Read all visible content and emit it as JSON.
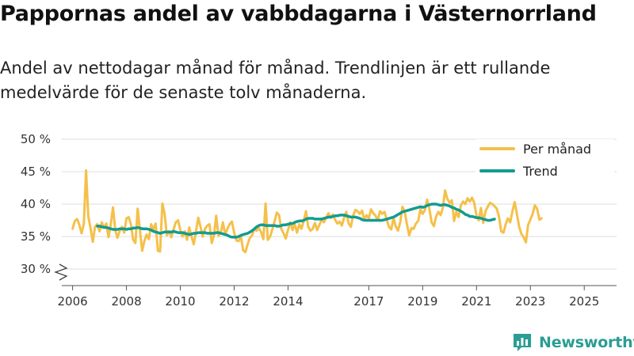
{
  "title": "Pappornas andel av vabbdagarna i Västernorrland",
  "subtitle": "Andel av nettodagar månad för månad. Trendlinjen är ett rullande medelvärde för de senaste tolv månaderna.",
  "brand": "Newsworthy",
  "colors": {
    "monthly": "#f5c04a",
    "trend": "#139b8f",
    "grid": "#dddddd",
    "axis": "#555555",
    "brand": "#2a9d94"
  },
  "chart_data": {
    "type": "line",
    "title": "Pappornas andel av vabbdagarna i Västernorrland",
    "xlabel": "",
    "ylabel": "",
    "ylim": [
      30,
      50
    ],
    "y_axis_break": true,
    "xlim": [
      2005.6,
      2026.2
    ],
    "x_ticks": [
      2006,
      2008,
      2010,
      2012,
      2014,
      2017,
      2019,
      2021,
      2023,
      2025
    ],
    "y_ticks": [
      30,
      35,
      40,
      45,
      50
    ],
    "y_tick_labels": [
      "30 %",
      "35 %",
      "40 %",
      "45 %",
      "50 %"
    ],
    "legend_position": "top-right",
    "grid": true,
    "series": [
      {
        "name": "Per månad",
        "start": 2006.0,
        "step": 0.08333,
        "values": [
          36.2,
          37.4,
          37.7,
          36.8,
          35.5,
          37.0,
          45.2,
          38.1,
          36.3,
          34.2,
          36.5,
          36.9,
          35.8,
          37.2,
          36.4,
          37.0,
          34.9,
          36.8,
          39.5,
          36.0,
          34.8,
          35.9,
          36.5,
          35.6,
          37.8,
          38.0,
          36.9,
          34.5,
          34.0,
          39.3,
          36.0,
          32.8,
          34.3,
          35.3,
          34.6,
          36.9,
          36.1,
          37.0,
          32.8,
          32.7,
          40.1,
          38.5,
          35.2,
          35.8,
          34.9,
          36.1,
          37.2,
          37.5,
          36.0,
          35.0,
          35.8,
          34.5,
          36.4,
          35.0,
          33.8,
          35.8,
          37.9,
          36.5,
          35.0,
          36.2,
          36.7,
          36.9,
          34.0,
          35.2,
          38.2,
          35.1,
          35.6,
          37.2,
          35.3,
          36.2,
          36.9,
          37.3,
          35.6,
          34.4,
          34.3,
          35.0,
          32.9,
          32.6,
          33.8,
          34.8,
          35.2,
          36.2,
          35.9,
          36.3,
          35.7,
          34.6,
          40.1,
          34.5,
          35.0,
          36.1,
          37.3,
          38.7,
          38.3,
          36.2,
          35.5,
          34.7,
          36.0,
          37.2,
          36.0,
          36.9,
          35.6,
          36.9,
          36.2,
          37.4,
          38.9,
          36.5,
          35.9,
          36.2,
          37.1,
          36.0,
          36.8,
          37.6,
          37.2,
          37.9,
          38.6,
          37.9,
          38.4,
          37.6,
          37.0,
          37.3,
          36.7,
          37.9,
          38.8,
          37.0,
          36.5,
          38.2,
          39.1,
          38.9,
          38.5,
          39.0,
          37.6,
          38.3,
          37.8,
          39.2,
          38.6,
          38.2,
          37.5,
          38.9,
          38.5,
          38.8,
          37.6,
          36.5,
          36.1,
          37.9,
          36.6,
          35.9,
          37.2,
          39.6,
          38.8,
          36.9,
          35.2,
          36.3,
          36.2,
          37.0,
          37.4,
          39.2,
          38.5,
          39.1,
          40.7,
          39.3,
          37.2,
          36.6,
          38.1,
          38.8,
          38.3,
          39.4,
          42.1,
          40.8,
          40.2,
          40.6,
          37.4,
          38.8,
          38.0,
          39.8,
          40.4,
          40.0,
          40.9,
          40.4,
          41.0,
          40.2,
          38.2,
          37.5,
          39.4,
          37.1,
          38.9,
          39.6,
          40.2,
          40.0,
          39.7,
          39.3,
          38.1,
          35.8,
          35.6,
          36.9,
          37.8,
          37.2,
          38.9,
          40.3,
          38.5,
          36.5,
          35.4,
          34.9,
          34.1,
          36.8,
          37.6,
          38.5,
          39.8,
          39.3,
          37.6,
          37.8
        ]
      },
      {
        "name": "Trend",
        "start": 2006.92,
        "step": 0.08333,
        "values": [
          36.6,
          36.6,
          36.5,
          36.4,
          36.4,
          36.3,
          36.2,
          36.1,
          36.1,
          36.1,
          36.2,
          36.2,
          36.2,
          36.1,
          36.2,
          36.2,
          36.3,
          36.3,
          36.4,
          36.3,
          36.2,
          36.2,
          36.2,
          36.1,
          36.0,
          35.8,
          35.7,
          35.6,
          35.5,
          35.6,
          35.7,
          35.7,
          35.7,
          35.7,
          35.8,
          35.7,
          35.6,
          35.6,
          35.6,
          35.5,
          35.4,
          35.3,
          35.4,
          35.5,
          35.5,
          35.6,
          35.6,
          35.6,
          35.6,
          35.5,
          35.5,
          35.5,
          35.5,
          35.6,
          35.6,
          35.5,
          35.4,
          35.3,
          35.2,
          35.0,
          34.9,
          34.9,
          34.9,
          35.0,
          35.2,
          35.3,
          35.4,
          35.5,
          35.7,
          35.9,
          36.2,
          36.5,
          36.7,
          36.8,
          36.8,
          36.7,
          36.7,
          36.7,
          36.7,
          36.7,
          36.6,
          36.6,
          36.7,
          36.8,
          36.8,
          36.9,
          37.0,
          37.0,
          37.2,
          37.3,
          37.4,
          37.4,
          37.5,
          37.7,
          37.8,
          37.8,
          37.8,
          37.7,
          37.7,
          37.7,
          37.7,
          37.8,
          37.9,
          38.0,
          38.0,
          38.1,
          38.2,
          38.2,
          38.3,
          38.3,
          38.3,
          38.2,
          38.1,
          38.0,
          38.0,
          38.0,
          37.9,
          37.8,
          37.6,
          37.5,
          37.5,
          37.5,
          37.5,
          37.5,
          37.5,
          37.5,
          37.5,
          37.5,
          37.6,
          37.7,
          37.8,
          37.9,
          38.0,
          38.2,
          38.4,
          38.6,
          38.8,
          38.9,
          39.0,
          39.1,
          39.2,
          39.3,
          39.4,
          39.5,
          39.6,
          39.5,
          39.6,
          39.8,
          39.9,
          40.0,
          40.0,
          40.0,
          39.9,
          39.8,
          39.9,
          39.9,
          39.8,
          39.7,
          39.5,
          39.4,
          39.2,
          39.1,
          38.9,
          38.7,
          38.4,
          38.3,
          38.1,
          38.1,
          38.0,
          37.9,
          37.9,
          37.8,
          37.7,
          37.6,
          37.5,
          37.5,
          37.6,
          37.7
        ]
      }
    ]
  }
}
